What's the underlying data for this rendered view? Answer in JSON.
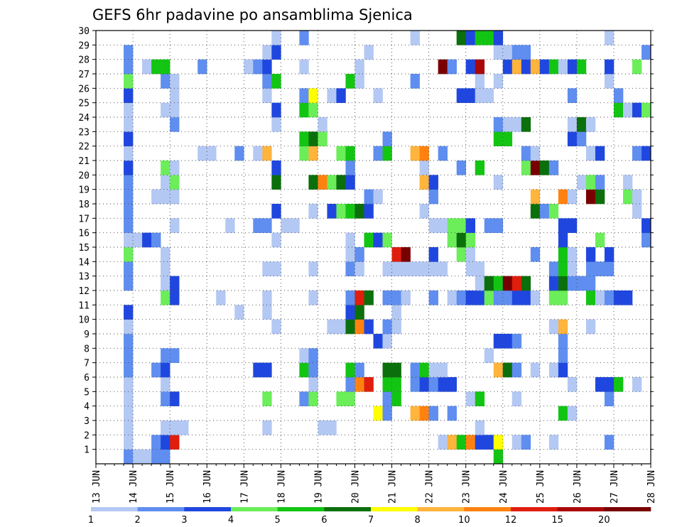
{
  "chart_data": {
    "type": "heatmap",
    "title": "GEFS 6hr padavine po ansamblima Sjenica",
    "x_tick_labels": [
      "13 JUN",
      "14 JUN",
      "15 JUN",
      "16 JUN",
      "17 JUN",
      "18 JUN",
      "19 JUN",
      "20 JUN",
      "21 JUN",
      "22 JUN",
      "23 JUN",
      "24 JUN",
      "25 JUN",
      "26 JUN",
      "27 JUN",
      "28 JUN"
    ],
    "y_tick_labels": [
      "1",
      "2",
      "3",
      "4",
      "5",
      "6",
      "7",
      "8",
      "9",
      "10",
      "11",
      "12",
      "13",
      "14",
      "15",
      "16",
      "17",
      "18",
      "19",
      "20",
      "21",
      "22",
      "23",
      "24",
      "25",
      "26",
      "27",
      "28",
      "29",
      "30"
    ],
    "ylim": [
      0,
      30
    ],
    "grid": true,
    "legend": "bottom",
    "colorbar_labels": [
      "1",
      "2",
      "3",
      "4",
      "5",
      "6",
      "7",
      "8",
      "10",
      "12",
      "15",
      "20"
    ],
    "colorbar_colors": [
      "#b4c8f4",
      "#5f8ef0",
      "#1f47e0",
      "#6bee5a",
      "#13c513",
      "#0b700b",
      "#ffff00",
      "#ffb43c",
      "#ff8210",
      "#e01e0e",
      "#aa0808",
      "#780000"
    ],
    "values_by_member": {
      "1": {
        "13 JUN 18": 2,
        "14 JUN 00": 1,
        "14 JUN 06": 1,
        "14 JUN 12": 2,
        "14 JUN 18": 2,
        "23 JUN 18": 5
      },
      "2": {
        "13 JUN 18": 1,
        "14 JUN 12": 2,
        "14 JUN 18": 3,
        "15 JUN 00": 10,
        "22 JUN 06": 1,
        "22 JUN 12": 8,
        "22 JUN 18": 5,
        "23 JUN 00": 9,
        "23 JUN 06": 3,
        "23 JUN 12": 3,
        "23 JUN 18": 7,
        "24 JUN 06": 1,
        "24 JUN 12": 2,
        "25 JUN 06": 1,
        "26 JUN 18": 2
      },
      "3": {
        "13 JUN 18": 1,
        "14 JUN 18": 1,
        "15 JUN 00": 1,
        "15 JUN 06": 1,
        "17 JUN 12": 1,
        "19 JUN 00": 1,
        "19 JUN 06": 1,
        "23 JUN 06": 1
      },
      "4": {
        "13 JUN 18": 1,
        "20 JUN 12": 7,
        "20 JUN 18": 2,
        "21 JUN 12": 8,
        "21 JUN 18": 9,
        "22 JUN 00": 2,
        "22 JUN 12": 2,
        "25 JUN 12": 5,
        "25 JUN 18": 1
      },
      "5": {
        "13 JUN 18": 1,
        "14 JUN 18": 2,
        "15 JUN 00": 3,
        "17 JUN 12": 4,
        "18 JUN 12": 2,
        "18 JUN 18": 4,
        "19 JUN 12": 4,
        "19 JUN 18": 4,
        "20 JUN 18": 2,
        "21 JUN 00": 5,
        "23 JUN 00": 1,
        "23 JUN 06": 5,
        "24 JUN 06": 1,
        "26 JUN 18": 2
      },
      "6": {
        "13 JUN 18": 1,
        "14 JUN 18": 1,
        "18 JUN 18": 1,
        "19 JUN 18": 2,
        "20 JUN 00": 9,
        "20 JUN 06": 10,
        "20 JUN 18": 5,
        "21 JUN 00": 5,
        "21 JUN 12": 2,
        "21 JUN 18": 3,
        "22 JUN 00": 2,
        "22 JUN 06": 3,
        "22 JUN 12": 3,
        "25 JUN 18": 1,
        "26 JUN 12": 3,
        "26 JUN 18": 3,
        "27 JUN 00": 5,
        "27 JUN 12": 1
      },
      "7": {
        "13 JUN 18": 2,
        "14 JUN 12": 2,
        "14 JUN 18": 3,
        "17 JUN 06": 3,
        "17 JUN 12": 3,
        "18 JUN 12": 5,
        "18 JUN 18": 2,
        "19 JUN 18": 5,
        "20 JUN 00": 2,
        "20 JUN 18": 6,
        "21 JUN 00": 6,
        "21 JUN 12": 2,
        "21 JUN 18": 5,
        "22 JUN 00": 1,
        "22 JUN 06": 1,
        "23 JUN 18": 8,
        "24 JUN 00": 6,
        "24 JUN 06": 2,
        "24 JUN 18": 1,
        "25 JUN 06": 1,
        "25 JUN 12": 3
      },
      "8": {
        "13 JUN 18": 2,
        "14 JUN 18": 2,
        "15 JUN 00": 2,
        "18 JUN 12": 1,
        "18 JUN 18": 2,
        "23 JUN 12": 1,
        "25 JUN 12": 2
      },
      "9": {
        "13 JUN 18": 2,
        "20 JUN 12": 3,
        "20 JUN 18": 1,
        "23 JUN 18": 3,
        "24 JUN 00": 3,
        "24 JUN 06": 2,
        "25 JUN 12": 2
      },
      "10": {
        "13 JUN 18": 1,
        "17 JUN 18": 1,
        "19 JUN 06": 1,
        "19 JUN 12": 1,
        "19 JUN 18": 6,
        "20 JUN 00": 9,
        "20 JUN 06": 3,
        "20 JUN 18": 2,
        "21 JUN 00": 1,
        "25 JUN 06": 1,
        "25 JUN 12": 8,
        "26 JUN 06": 1
      },
      "11": {
        "13 JUN 18": 3,
        "16 JUN 18": 1,
        "17 JUN 12": 1,
        "19 JUN 18": 3,
        "20 JUN 00": 6,
        "21 JUN 00": 1
      },
      "12": {
        "14 JUN 18": 4,
        "15 JUN 00": 3,
        "16 JUN 06": 1,
        "17 JUN 12": 1,
        "18 JUN 18": 1,
        "19 JUN 18": 2,
        "20 JUN 00": 10,
        "20 JUN 06": 6,
        "20 JUN 18": 2,
        "21 JUN 00": 2,
        "21 JUN 06": 1,
        "22 JUN 00": 2,
        "22 JUN 12": 1,
        "22 JUN 18": 2,
        "23 JUN 00": 3,
        "23 JUN 06": 3,
        "23 JUN 12": 4,
        "23 JUN 18": 2,
        "24 JUN 00": 2,
        "24 JUN 06": 3,
        "24 JUN 12": 3,
        "24 JUN 18": 1,
        "25 JUN 06": 4,
        "25 JUN 12": 4,
        "26 JUN 06": 5,
        "26 JUN 12": 1,
        "26 JUN 18": 2,
        "27 JUN 00": 3,
        "27 JUN 06": 3
      },
      "13": {
        "13 JUN 18": 2,
        "14 JUN 18": 1,
        "15 JUN 00": 3,
        "23 JUN 06": 1,
        "23 JUN 12": 6,
        "23 JUN 18": 5,
        "24 JUN 00": 12,
        "24 JUN 06": 10,
        "24 JUN 12": 6,
        "25 JUN 06": 3,
        "25 JUN 12": 6,
        "25 JUN 18": 2,
        "26 JUN 00": 2,
        "26 JUN 06": 2
      },
      "14": {
        "13 JUN 18": 2,
        "14 JUN 18": 1,
        "17 JUN 12": 1,
        "17 JUN 18": 1,
        "18 JUN 18": 1,
        "19 JUN 18": 2,
        "20 JUN 00": 1,
        "20 JUN 18": 1,
        "21 JUN 00": 1,
        "21 JUN 06": 1,
        "21 JUN 12": 1,
        "21 JUN 18": 1,
        "22 JUN 00": 1,
        "22 JUN 06": 1,
        "23 JUN 00": 1,
        "23 JUN 06": 1,
        "25 JUN 06": 2,
        "25 JUN 12": 5,
        "25 JUN 18": 1,
        "26 JUN 06": 2,
        "26 JUN 12": 2,
        "26 JUN 18": 2
      },
      "15": {
        "13 JUN 18": 4,
        "14 JUN 18": 1,
        "19 JUN 18": 1,
        "20 JUN 00": 2,
        "21 JUN 00": 10,
        "21 JUN 06": 13,
        "22 JUN 00": 3,
        "22 JUN 18": 4,
        "23 JUN 00": 1,
        "24 JUN 18": 2,
        "25 JUN 12": 5,
        "25 JUN 18": 1,
        "26 JUN 06": 3,
        "26 JUN 18": 3
      },
      "16": {
        "13 JUN 18": 1,
        "14 JUN 00": 1,
        "14 JUN 06": 3,
        "14 JUN 12": 2,
        "17 JUN 18": 1,
        "19 JUN 18": 1,
        "20 JUN 06": 5,
        "20 JUN 12": 3,
        "20 JUN 18": 4,
        "22 JUN 12": 4,
        "22 JUN 18": 6,
        "23 JUN 00": 4,
        "25 JUN 12": 3,
        "26 JUN 12": 4,
        "27 JUN 18": 2
      },
      "17": {
        "13 JUN 18": 2,
        "15 JUN 00": 1,
        "16 JUN 12": 1,
        "17 JUN 06": 2,
        "17 JUN 12": 2,
        "18 JUN 00": 1,
        "18 JUN 06": 1,
        "22 JUN 00": 1,
        "22 JUN 06": 1,
        "22 JUN 12": 4,
        "22 JUN 18": 4,
        "23 JUN 00": 3,
        "23 JUN 12": 2,
        "23 JUN 18": 2,
        "25 JUN 12": 3,
        "25 JUN 18": 3,
        "27 JUN 18": 3
      },
      "18": {
        "13 JUN 18": 2,
        "17 JUN 18": 3,
        "18 JUN 18": 1,
        "19 JUN 06": 3,
        "19 JUN 12": 4,
        "19 JUN 18": 5,
        "20 JUN 00": 6,
        "20 JUN 06": 3,
        "21 JUN 18": 1,
        "24 JUN 18": 6,
        "25 JUN 00": 2,
        "25 JUN 06": 4,
        "27 JUN 12": 1
      },
      "19": {
        "13 JUN 18": 2,
        "14 JUN 12": 1,
        "14 JUN 18": 1,
        "15 JUN 00": 1,
        "20 JUN 06": 2,
        "20 JUN 12": 1,
        "22 JUN 00": 2,
        "24 JUN 18": 8,
        "25 JUN 12": 9,
        "25 JUN 18": 1,
        "26 JUN 06": 15,
        "26 JUN 12": 6,
        "27 JUN 06": 4,
        "27 JUN 12": 1
      },
      "20": {
        "13 JUN 18": 2,
        "14 JUN 18": 1,
        "15 JUN 00": 4,
        "17 JUN 18": 6,
        "18 JUN 18": 6,
        "19 JUN 00": 9,
        "19 JUN 06": 4,
        "19 JUN 12": 6,
        "19 JUN 18": 3,
        "21 JUN 18": 8,
        "22 JUN 00": 3,
        "23 JUN 18": 1,
        "26 JUN 00": 1,
        "26 JUN 06": 4,
        "26 JUN 12": 2,
        "27 JUN 06": 1
      },
      "21": {
        "13 JUN 18": 3,
        "14 JUN 18": 4,
        "15 JUN 00": 1,
        "17 JUN 18": 3,
        "19 JUN 18": 2,
        "21 JUN 18": 1,
        "22 JUN 18": 2,
        "23 JUN 06": 5,
        "24 JUN 12": 4,
        "24 JUN 18": 13,
        "25 JUN 00": 6,
        "25 JUN 06": 2
      },
      "22": {
        "13 JUN 18": 1,
        "15 JUN 18": 1,
        "16 JUN 00": 1,
        "16 JUN 18": 2,
        "17 JUN 06": 1,
        "17 JUN 12": 8,
        "18 JUN 12": 4,
        "18 JUN 18": 8,
        "19 JUN 12": 4,
        "19 JUN 18": 5,
        "20 JUN 12": 2,
        "20 JUN 18": 5,
        "21 JUN 12": 8,
        "21 JUN 18": 9,
        "22 JUN 06": 2,
        "24 JUN 12": 2,
        "24 JUN 18": 1,
        "26 JUN 06": 1,
        "26 JUN 12": 3,
        "27 JUN 12": 2,
        "27 JUN 18": 3
      },
      "23": {
        "13 JUN 18": 3,
        "18 JUN 12": 5,
        "18 JUN 18": 6,
        "19 JUN 00": 4,
        "20 JUN 18": 2,
        "23 JUN 18": 5,
        "24 JUN 00": 5,
        "25 JUN 18": 3,
        "26 JUN 00": 2
      },
      "24": {
        "13 JUN 18": 1,
        "15 JUN 00": 2,
        "17 JUN 18": 1,
        "19 JUN 00": 1,
        "23 JUN 18": 2,
        "24 JUN 00": 1,
        "24 JUN 06": 1,
        "24 JUN 12": 6,
        "25 JUN 18": 1,
        "26 JUN 00": 6,
        "26 JUN 06": 1
      },
      "25": {
        "13 JUN 18": 1,
        "14 JUN 18": 1,
        "15 JUN 00": 1,
        "17 JUN 18": 3,
        "18 JUN 12": 5,
        "18 JUN 18": 4,
        "27 JUN 00": 5,
        "27 JUN 06": 1,
        "27 JUN 12": 3,
        "27 JUN 18": 4
      },
      "26": {
        "13 JUN 18": 3,
        "15 JUN 00": 1,
        "17 JUN 12": 1,
        "18 JUN 12": 2,
        "18 JUN 18": 7,
        "19 JUN 06": 1,
        "19 JUN 12": 3,
        "20 JUN 12": 1,
        "22 JUN 18": 3,
        "23 JUN 00": 3,
        "23 JUN 06": 1,
        "23 JUN 12": 1,
        "25 JUN 18": 2,
        "27 JUN 00": 2
      },
      "27": {
        "13 JUN 18": 4,
        "14 JUN 18": 2,
        "15 JUN 00": 1,
        "17 JUN 12": 2,
        "17 JUN 18": 5,
        "19 JUN 18": 5,
        "20 JUN 00": 1,
        "21 JUN 12": 2,
        "23 JUN 06": 1,
        "23 JUN 18": 1,
        "26 JUN 18": 1
      },
      "28": {
        "13 JUN 18": 2,
        "14 JUN 06": 1,
        "14 JUN 12": 5,
        "14 JUN 18": 5,
        "15 JUN 18": 2,
        "17 JUN 00": 1,
        "17 JUN 06": 2,
        "17 JUN 12": 3,
        "18 JUN 12": 1,
        "20 JUN 00": 1,
        "22 JUN 06": 13,
        "22 JUN 12": 2,
        "23 JUN 00": 3,
        "23 JUN 06": 11,
        "24 JUN 00": 3,
        "24 JUN 06": 8,
        "24 JUN 12": 3,
        "24 JUN 18": 8,
        "25 JUN 00": 3,
        "25 JUN 06": 5,
        "25 JUN 12": 1,
        "25 JUN 18": 3,
        "26 JUN 00": 5,
        "26 JUN 18": 3,
        "27 JUN 12": 4
      },
      "29": {
        "13 JUN 18": 2,
        "17 JUN 12": 1,
        "17 JUN 18": 3,
        "20 JUN 06": 1,
        "23 JUN 18": 1,
        "24 JUN 00": 1,
        "24 JUN 06": 2,
        "24 JUN 12": 2,
        "27 JUN 18": 2
      },
      "30": {
        "17 JUN 18": 1,
        "18 JUN 12": 2,
        "21 JUN 12": 1,
        "22 JUN 18": 6,
        "23 JUN 00": 3,
        "23 JUN 06": 5,
        "23 JUN 12": 5,
        "23 JUN 18": 3,
        "26 JUN 18": 1
      }
    }
  }
}
